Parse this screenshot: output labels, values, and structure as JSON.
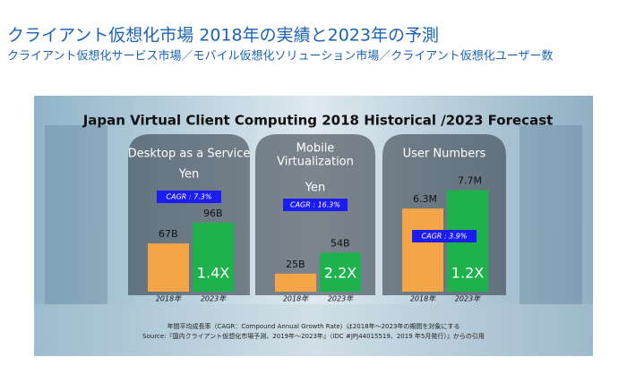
{
  "header": {
    "title": "クライアント仮想化市場 2018年の実績と2023年の予測",
    "subtitle": "クライアント仮想化サービス市場／モバイル仮想化ソリューション市場／クライアント仮想化ユーザー数"
  },
  "panel_title": "Japan Virtual Client Computing 2018 Historical /2023 Forecast",
  "footnote": [
    "年間平均成長率（CAGR：Compound Annual Growth Rate）は2018年～2023年の期間を対象にする",
    "Source:『国内クライアント仮想化市場予測、2019年～2023年』（IDC #JPJ44015519、2019 年5月発行）』からの引用"
  ],
  "chart_data": [
    {
      "type": "bar",
      "title": [
        "Desktop as a Service"
      ],
      "unit": "Yen",
      "cagr": "CAGR : 7.3%",
      "categories": [
        "2018年",
        "2023年"
      ],
      "values": [
        67,
        96
      ],
      "value_labels": [
        "67B",
        "96B"
      ],
      "colors": [
        "#f5a545",
        "#1db24b"
      ],
      "growth_label": "1.4X",
      "ylim": [
        0,
        143
      ]
    },
    {
      "type": "bar",
      "title": [
        "Mobile",
        "Virtualization"
      ],
      "unit": "Yen",
      "cagr": "CAGR : 16.3%",
      "categories": [
        "2018年",
        "2023年"
      ],
      "values": [
        25,
        54
      ],
      "value_labels": [
        "25B",
        "54B"
      ],
      "colors": [
        "#f5a545",
        "#1db24b"
      ],
      "growth_label": "2.2X",
      "ylim": [
        0,
        143
      ]
    },
    {
      "type": "bar",
      "title": [
        "User Numbers"
      ],
      "cagr": "CAGR : 3.9%",
      "categories": [
        "2018年",
        "2023年"
      ],
      "values": [
        6.3,
        7.7
      ],
      "value_labels": [
        "6.3M",
        "7.7M"
      ],
      "colors": [
        "#f5a545",
        "#1db24b"
      ],
      "growth_label": "1.2X",
      "ylim": [
        0,
        7.8
      ]
    }
  ]
}
